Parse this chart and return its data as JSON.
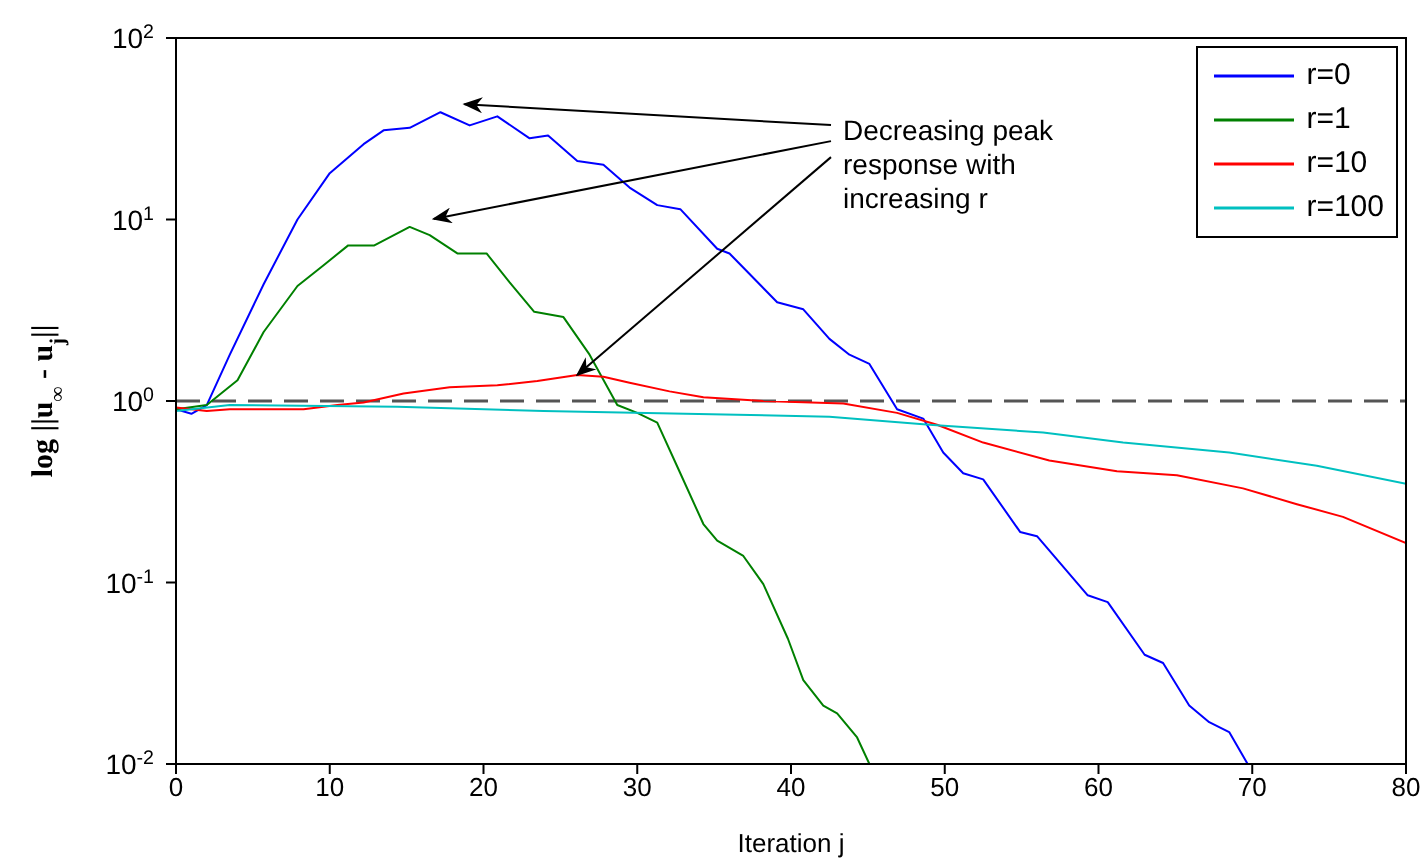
{
  "chart_data": {
    "type": "line",
    "xlabel": "Iteration j",
    "ylabel": "log ||u$_{∞}$ - u$_{j}$||",
    "log": "y",
    "xlim": [
      0,
      80
    ],
    "xticks": [
      0,
      10,
      20,
      30,
      40,
      50,
      60,
      70,
      80
    ],
    "ylim": [
      0.01,
      100
    ],
    "yticks": [
      {
        "value": 0.01,
        "label": "10$^{-2}$"
      },
      {
        "value": 0.1,
        "label": "10$^{-1}$"
      },
      {
        "value": 1,
        "label": "10$^{0}$"
      },
      {
        "value": 10,
        "label": "10$^{1}$"
      },
      {
        "value": 100,
        "label": "10$^{2}$"
      }
    ],
    "legend": "top right",
    "grid": false,
    "line_style": "solid",
    "marker": "none",
    "series": [
      {
        "name": "r=0",
        "color": "#0000ff",
        "x": [
          0,
          1,
          2,
          3.5,
          5.7,
          7.9,
          10,
          12.2,
          13.5,
          15.2,
          17.2,
          19.1,
          20.9,
          23,
          24.2,
          26.1,
          27.8,
          29.5,
          31.3,
          32.8,
          35.2,
          36,
          39.1,
          40.8,
          42.5,
          43.8,
          45.1,
          46.9,
          48.6,
          49.9,
          51.2,
          52.5,
          54.9,
          56,
          59.3,
          60.6,
          63,
          64.2,
          65.9,
          67.2,
          68.5,
          69.7
        ],
        "values": [
          0.9,
          0.85,
          0.95,
          1.8,
          4.4,
          10,
          18,
          26,
          31,
          32,
          39,
          33,
          37,
          28,
          29,
          21,
          20,
          15,
          12,
          11.4,
          6.9,
          6.5,
          3.5,
          3.2,
          2.2,
          1.8,
          1.6,
          0.9,
          0.8,
          0.52,
          0.4,
          0.37,
          0.19,
          0.18,
          0.085,
          0.078,
          0.04,
          0.036,
          0.021,
          0.017,
          0.015,
          0.01
        ]
      },
      {
        "name": "r=1",
        "color": "#008000",
        "x": [
          0,
          2,
          4,
          5.7,
          7.9,
          9.6,
          11.2,
          12.9,
          15.2,
          16.5,
          18.3,
          20.2,
          21.7,
          23.3,
          25.2,
          26.9,
          28.7,
          30,
          31.3,
          32.8,
          34.3,
          35.2,
          36.9,
          38.2,
          39.8,
          40.8,
          42.1,
          43,
          44.3,
          45.1
        ],
        "values": [
          0.9,
          0.95,
          1.3,
          2.4,
          4.3,
          5.6,
          7.2,
          7.2,
          9.1,
          8.2,
          6.5,
          6.5,
          4.5,
          3.1,
          2.9,
          1.8,
          0.95,
          0.86,
          0.76,
          0.4,
          0.21,
          0.17,
          0.14,
          0.098,
          0.049,
          0.029,
          0.021,
          0.019,
          0.014,
          0.01
        ]
      },
      {
        "name": "r=10",
        "color": "#ff0000",
        "x": [
          0,
          2,
          3.5,
          8.3,
          10.5,
          12.2,
          14.8,
          17.8,
          20.9,
          23.5,
          26.1,
          27.8,
          29.5,
          32.1,
          34.3,
          38.2,
          43.4,
          46.9,
          49.5,
          52.5,
          56.8,
          61.2,
          65.1,
          69.4,
          72.9,
          75.9,
          80
        ],
        "values": [
          0.92,
          0.88,
          0.9,
          0.9,
          0.95,
          0.98,
          1.1,
          1.19,
          1.22,
          1.29,
          1.39,
          1.36,
          1.26,
          1.13,
          1.05,
          1,
          0.97,
          0.86,
          0.74,
          0.59,
          0.47,
          0.41,
          0.39,
          0.33,
          0.27,
          0.23,
          0.165
        ]
      },
      {
        "name": "r=100",
        "color": "#00c0c0",
        "x": [
          0,
          3.5,
          14.4,
          23.9,
          36.5,
          42.5,
          49,
          56.4,
          61.6,
          68.5,
          74.2,
          80
        ],
        "values": [
          0.88,
          0.95,
          0.93,
          0.88,
          0.84,
          0.82,
          0.74,
          0.67,
          0.59,
          0.52,
          0.44,
          0.35
        ]
      }
    ],
    "ref_lines": [
      {
        "axis": "y",
        "value": 1,
        "color": "#555555",
        "line_style": "dashed"
      }
    ],
    "annotations": [
      {
        "text": "Decreasing peak response with increasing r",
        "x": 26.1,
        "y": 1.39
      }
    ]
  }
}
